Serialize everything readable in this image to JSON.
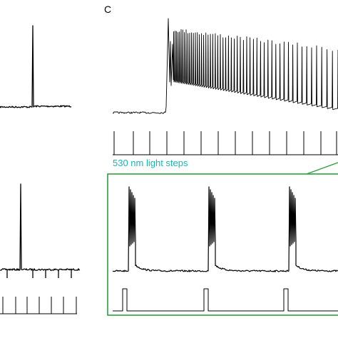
{
  "panel_label": "C",
  "light_caption": "530 nm light steps",
  "colors": {
    "trace": "#000000",
    "caption": "#19b6b6",
    "inset_frame": "#2e9e3e",
    "background": "#ffffff"
  }
}
